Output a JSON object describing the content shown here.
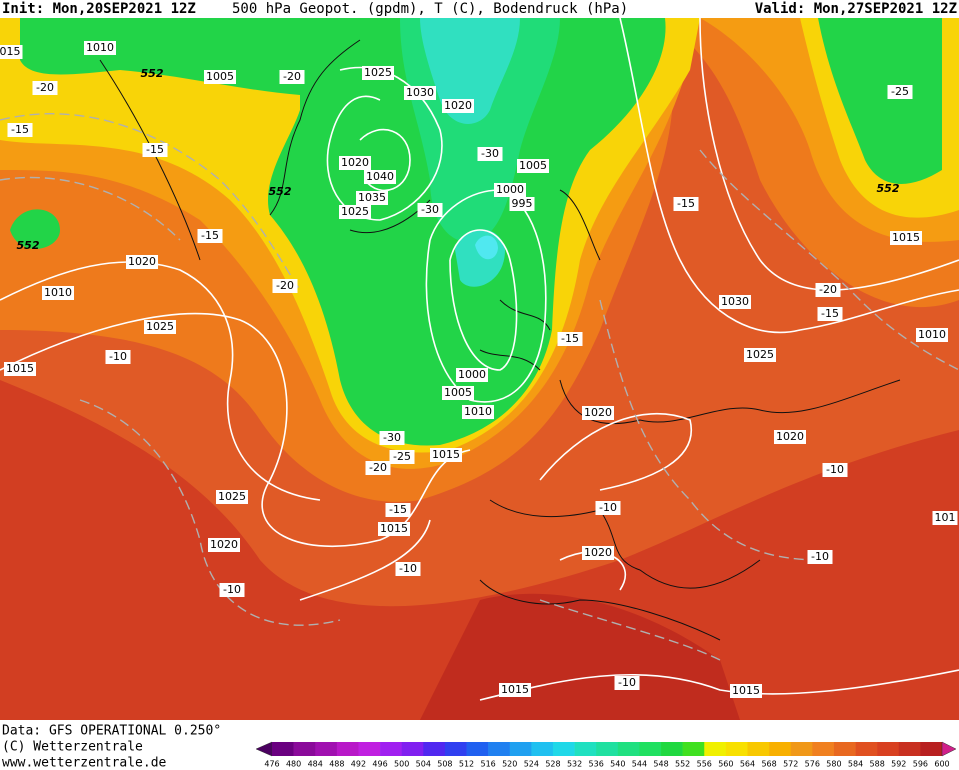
{
  "header": {
    "init": "Init: Mon,20SEP2021 12Z",
    "product": "500 hPa Geopot. (gpdm), T (C), Bodendruck (hPa)",
    "valid": "Valid: Mon,27SEP2021 12Z"
  },
  "map": {
    "labels": [
      "1010",
      "552",
      "1005",
      "-20",
      "1025",
      "1030",
      "1020",
      "1020",
      "1040",
      "1035",
      "1025",
      "-30",
      "-30",
      "1005",
      "1000",
      "995",
      "552",
      "-15",
      "-15",
      "-20",
      "-15",
      "552",
      "1020",
      "1010",
      "-20",
      "1025",
      "-10",
      "1015",
      "1000",
      "1005",
      "1010",
      "-30",
      "-20",
      "-25",
      "1015",
      "-15",
      "1020",
      "-15",
      "1030",
      "1025",
      "1020",
      "-20",
      "-15",
      "1010",
      "-10",
      "1015",
      "552",
      "-25",
      "1025",
      "-15",
      "1015",
      "-10",
      "1020",
      "1020",
      "-10",
      "-10",
      "-10",
      "1015",
      "-10",
      "1015",
      "101",
      "015"
    ]
  },
  "footer": {
    "data": "Data: GFS OPERATIONAL 0.250°",
    "copyright": "(C) Wetterzentrale",
    "url": "www.wetterzentrale.de"
  },
  "colorbar": {
    "labels": [
      476,
      480,
      484,
      488,
      492,
      496,
      500,
      504,
      508,
      512,
      516,
      520,
      524,
      528,
      532,
      536,
      540,
      544,
      548,
      552,
      556,
      560,
      564,
      568,
      572,
      576,
      580,
      584,
      588,
      592,
      596,
      600
    ],
    "low_color": "#4b0060",
    "high_color": "#d0208a",
    "colors": [
      "#6a0080",
      "#8a0a9a",
      "#a010b0",
      "#b818c8",
      "#c020e0",
      "#a020f0",
      "#8020f0",
      "#5028f0",
      "#3040f0",
      "#2060f0",
      "#2080f0",
      "#20a0f0",
      "#20c0f0",
      "#20d8e8",
      "#20e0c0",
      "#20e0a0",
      "#20e080",
      "#20e060",
      "#20d840",
      "#40e020",
      "#f0f000",
      "#f8e000",
      "#f8c800",
      "#f8b000",
      "#f09818",
      "#f08020",
      "#e86820",
      "#e05020",
      "#d84020",
      "#c83020",
      "#b82020"
    ]
  }
}
